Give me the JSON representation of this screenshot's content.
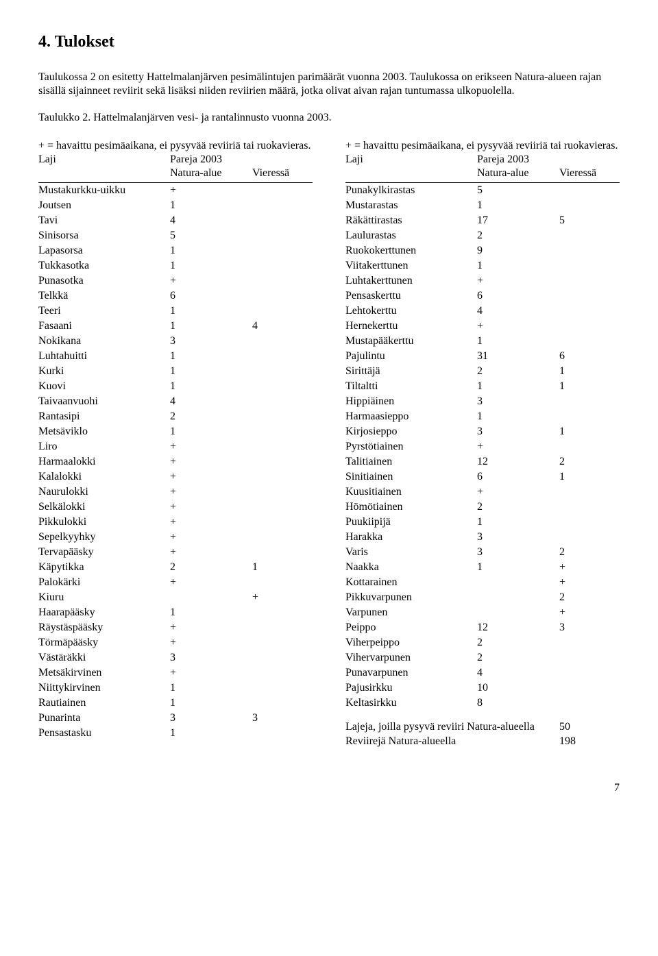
{
  "heading": "4. Tulokset",
  "intro": "Taulukossa 2 on esitetty Hattelmalanjärven pesimälintujen parimäärät vuonna 2003. Taulukossa on erikseen Natura-alueen rajan sisällä sijainneet reviirit sekä lisäksi niiden reviirien määrä, jotka olivat aivan rajan tuntumassa ulkopuolella.",
  "table_title": "Taulukko 2. Hattelmalanjärven vesi- ja rantalinnusto vuonna 2003.",
  "note": "+ = havaittu pesimäaikana, ei pysyvää reviiriä tai ruokavieras.",
  "col_headers": {
    "laji": "Laji",
    "pareja": "Pareja 2003",
    "natura": "Natura-alue",
    "vieressa": "Vieressä"
  },
  "left_rows": [
    {
      "laji": "Mustakurkku-uikku",
      "a": "+",
      "b": ""
    },
    {
      "laji": "Joutsen",
      "a": "1",
      "b": ""
    },
    {
      "laji": "Tavi",
      "a": "4",
      "b": ""
    },
    {
      "laji": "Sinisorsa",
      "a": "5",
      "b": ""
    },
    {
      "laji": "Lapasorsa",
      "a": "1",
      "b": ""
    },
    {
      "laji": "Tukkasotka",
      "a": "1",
      "b": ""
    },
    {
      "laji": "Punasotka",
      "a": "+",
      "b": ""
    },
    {
      "laji": "Telkkä",
      "a": "6",
      "b": ""
    },
    {
      "laji": "Teeri",
      "a": "1",
      "b": ""
    },
    {
      "laji": "Fasaani",
      "a": "1",
      "b": "4"
    },
    {
      "laji": "Nokikana",
      "a": "3",
      "b": ""
    },
    {
      "laji": "Luhtahuitti",
      "a": "1",
      "b": ""
    },
    {
      "laji": "Kurki",
      "a": "1",
      "b": ""
    },
    {
      "laji": "Kuovi",
      "a": "1",
      "b": ""
    },
    {
      "laji": "Taivaanvuohi",
      "a": "4",
      "b": ""
    },
    {
      "laji": "Rantasipi",
      "a": "2",
      "b": ""
    },
    {
      "laji": "Metsäviklo",
      "a": "1",
      "b": ""
    },
    {
      "laji": "Liro",
      "a": "+",
      "b": ""
    },
    {
      "laji": "Harmaalokki",
      "a": "+",
      "b": ""
    },
    {
      "laji": "Kalalokki",
      "a": "+",
      "b": ""
    },
    {
      "laji": "Naurulokki",
      "a": "+",
      "b": ""
    },
    {
      "laji": "Selkälokki",
      "a": "+",
      "b": ""
    },
    {
      "laji": "Pikkulokki",
      "a": "+",
      "b": ""
    },
    {
      "laji": "Sepelkyyhky",
      "a": "+",
      "b": ""
    },
    {
      "laji": "Tervapääsky",
      "a": "+",
      "b": ""
    },
    {
      "laji": "Käpytikka",
      "a": "2",
      "b": "1"
    },
    {
      "laji": "Palokärki",
      "a": "+",
      "b": ""
    },
    {
      "laji": "Kiuru",
      "a": "",
      "b": "+"
    },
    {
      "laji": "Haarapääsky",
      "a": "1",
      "b": ""
    },
    {
      "laji": "Räystäspääsky",
      "a": "+",
      "b": ""
    },
    {
      "laji": "Törmäpääsky",
      "a": "+",
      "b": ""
    },
    {
      "laji": "Västäräkki",
      "a": "3",
      "b": ""
    },
    {
      "laji": "Metsäkirvinen",
      "a": "+",
      "b": ""
    },
    {
      "laji": "Niittykirvinen",
      "a": "1",
      "b": ""
    },
    {
      "laji": "Rautiainen",
      "a": "1",
      "b": ""
    },
    {
      "laji": "Punarinta",
      "a": "3",
      "b": "3"
    },
    {
      "laji": "Pensastasku",
      "a": "1",
      "b": ""
    }
  ],
  "right_rows": [
    {
      "laji": "Punakylkirastas",
      "a": "5",
      "b": ""
    },
    {
      "laji": "Mustarastas",
      "a": "1",
      "b": ""
    },
    {
      "laji": "Räkättirastas",
      "a": "17",
      "b": "5"
    },
    {
      "laji": "Laulurastas",
      "a": "2",
      "b": ""
    },
    {
      "laji": "Ruokokerttunen",
      "a": "9",
      "b": ""
    },
    {
      "laji": "Viitakerttunen",
      "a": "1",
      "b": ""
    },
    {
      "laji": "Luhtakerttunen",
      "a": "+",
      "b": ""
    },
    {
      "laji": "Pensaskerttu",
      "a": "6",
      "b": ""
    },
    {
      "laji": "Lehtokerttu",
      "a": "4",
      "b": ""
    },
    {
      "laji": "Hernekerttu",
      "a": "+",
      "b": ""
    },
    {
      "laji": "Mustapääkerttu",
      "a": "1",
      "b": ""
    },
    {
      "laji": "Pajulintu",
      "a": "31",
      "b": "6"
    },
    {
      "laji": "Sirittäjä",
      "a": "2",
      "b": "1"
    },
    {
      "laji": "Tiltaltti",
      "a": "1",
      "b": "1"
    },
    {
      "laji": "Hippiäinen",
      "a": "3",
      "b": ""
    },
    {
      "laji": "Harmaasieppo",
      "a": "1",
      "b": ""
    },
    {
      "laji": "Kirjosieppo",
      "a": "3",
      "b": "1"
    },
    {
      "laji": "Pyrstötiainen",
      "a": "+",
      "b": ""
    },
    {
      "laji": "Talitiainen",
      "a": "12",
      "b": "2"
    },
    {
      "laji": "Sinitiainen",
      "a": "6",
      "b": "1"
    },
    {
      "laji": "Kuusitiainen",
      "a": "+",
      "b": ""
    },
    {
      "laji": "Hömötiainen",
      "a": "2",
      "b": ""
    },
    {
      "laji": "Puukiipijä",
      "a": "1",
      "b": ""
    },
    {
      "laji": "Harakka",
      "a": "3",
      "b": ""
    },
    {
      "laji": "Varis",
      "a": "3",
      "b": "2"
    },
    {
      "laji": "Naakka",
      "a": "1",
      "b": "+"
    },
    {
      "laji": "Kottarainen",
      "a": "",
      "b": "+"
    },
    {
      "laji": "Pikkuvarpunen",
      "a": "",
      "b": "2"
    },
    {
      "laji": "Varpunen",
      "a": "",
      "b": "+"
    },
    {
      "laji": "Peippo",
      "a": "12",
      "b": "3"
    },
    {
      "laji": "Viherpeippo",
      "a": "2",
      "b": ""
    },
    {
      "laji": "Vihervarpunen",
      "a": "2",
      "b": ""
    },
    {
      "laji": "Punavarpunen",
      "a": "4",
      "b": ""
    },
    {
      "laji": "Pajusirkku",
      "a": "10",
      "b": ""
    },
    {
      "laji": "Keltasirkku",
      "a": "8",
      "b": ""
    }
  ],
  "summary1_label": "Lajeja, joilla pysyvä reviiri Natura-alueella",
  "summary1_value": "50",
  "summary2_label": "Reviirejä Natura-alueella",
  "summary2_value": "198",
  "page_num": "7"
}
